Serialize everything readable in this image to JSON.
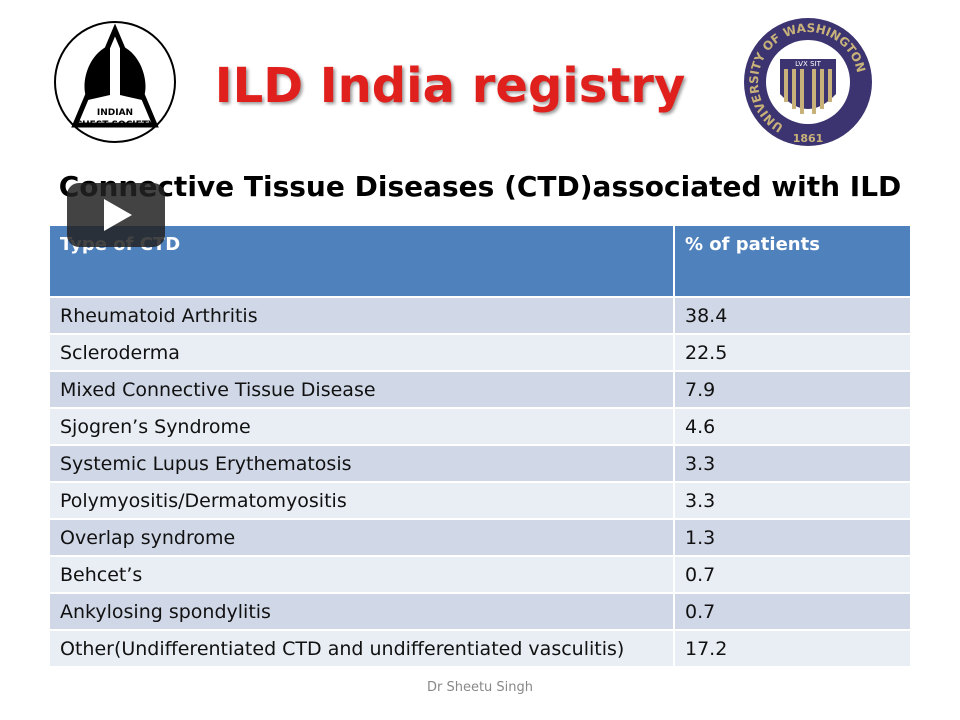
{
  "header": {
    "title": "ILD India registry",
    "subtitle": "Connective Tissue Diseases (CTD)associated with ILD",
    "left_logo": {
      "line1": "INDIAN",
      "line2": "CHEST SOCIETY"
    },
    "right_logo": {
      "ring": "UNIVERSITY OF WASHINGTON",
      "motto": "LVX SIT",
      "year": "1861"
    }
  },
  "table": {
    "columns": [
      "Type of CTD",
      "% of patients"
    ],
    "rows": [
      [
        "Rheumatoid Arthritis",
        "38.4"
      ],
      [
        "Scleroderma",
        "22.5"
      ],
      [
        "Mixed Connective Tissue Disease",
        "7.9"
      ],
      [
        "Sjogren’s Syndrome",
        "4.6"
      ],
      [
        "Systemic Lupus Erythematosis",
        "3.3"
      ],
      [
        "Polymyositis/Dermatomyositis",
        "3.3"
      ],
      [
        "Overlap syndrome",
        "1.3"
      ],
      [
        "Behcet’s",
        "0.7"
      ],
      [
        "Ankylosing spondylitis",
        "0.7"
      ],
      [
        "Other(Undifferentiated CTD and undifferentiated vasculitis)",
        "17.2"
      ]
    ]
  },
  "footer": {
    "author": "Dr Sheetu Singh"
  }
}
